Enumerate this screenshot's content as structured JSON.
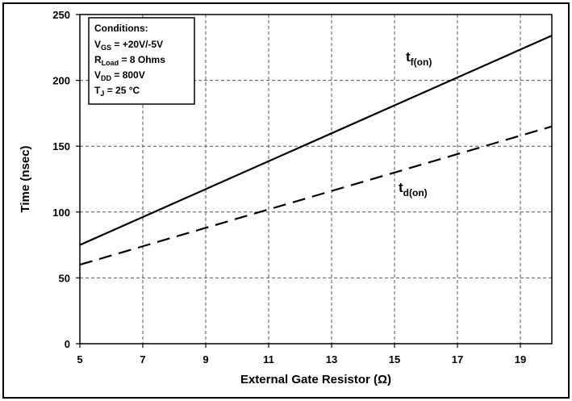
{
  "chart_data": {
    "type": "line",
    "title": "",
    "xlabel": "External Gate Resistor (Ω)",
    "ylabel": "Time (nsec)",
    "xlim": [
      5,
      20
    ],
    "ylim": [
      0,
      250
    ],
    "xticks": [
      5,
      7,
      9,
      11,
      13,
      15,
      17,
      19
    ],
    "yticks": [
      0,
      50,
      100,
      150,
      200,
      250
    ],
    "grid": true,
    "series": [
      {
        "name": "t",
        "name_sub": "f(on)",
        "style": "solid",
        "color": "#000000",
        "x": [
          5,
          20
        ],
        "y": [
          75,
          234
        ]
      },
      {
        "name": "t",
        "name_sub": "d(on)",
        "style": "dashed",
        "color": "#000000",
        "x": [
          5,
          20
        ],
        "y": [
          60,
          165
        ]
      }
    ],
    "annotation": {
      "heading": "Conditions:",
      "lines": [
        {
          "main": "V",
          "sub": "GS",
          "rest": " = +20V/-5V"
        },
        {
          "main": "R",
          "sub": "Load",
          "rest": " = 8 Ohms"
        },
        {
          "main": "V",
          "sub": "DD",
          "rest": " = 800V"
        },
        {
          "main": "T",
          "sub": "J",
          "rest": " = 25 °C"
        }
      ]
    }
  }
}
